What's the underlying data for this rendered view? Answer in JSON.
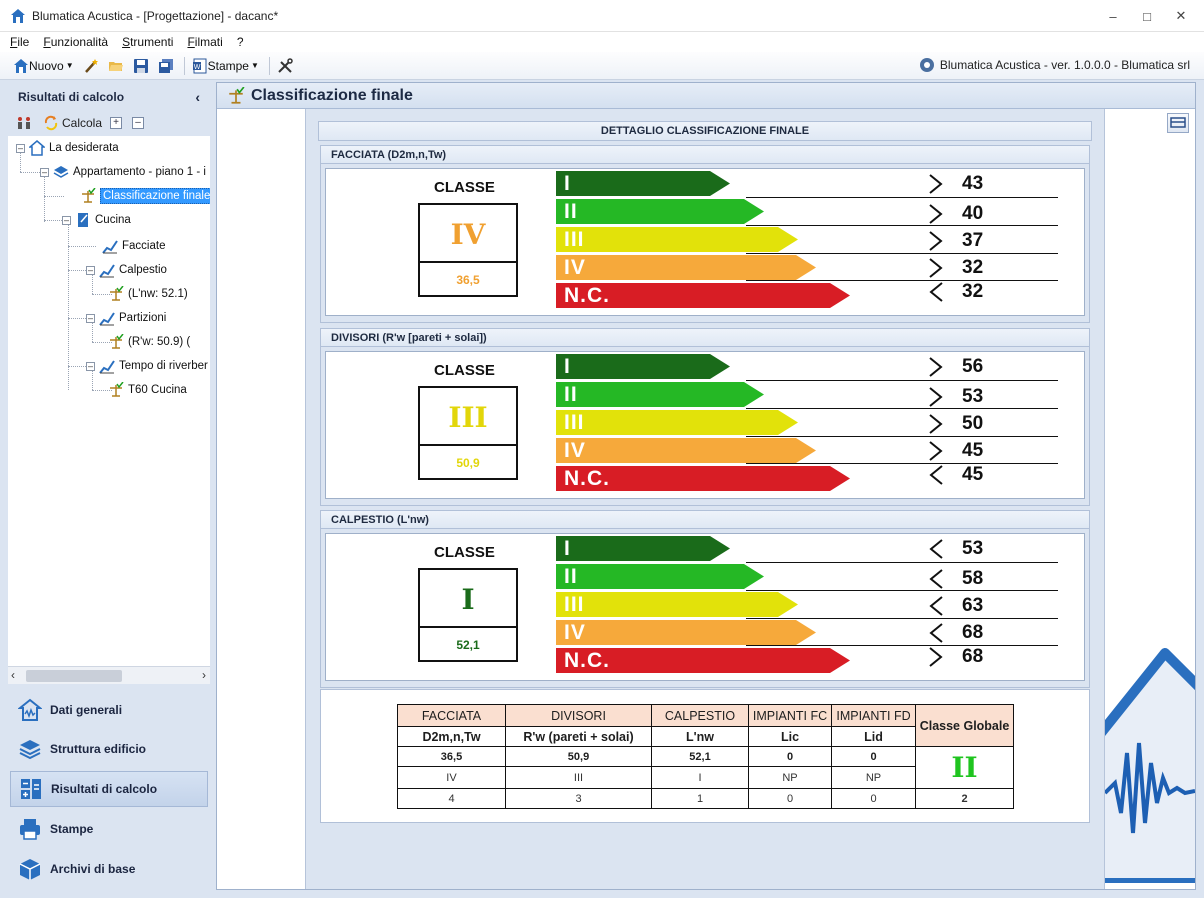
{
  "window": {
    "title": "Blumatica Acustica - [Progettazione]  - dacanc*"
  },
  "menu": [
    {
      "label": "File",
      "u": "F",
      "rest": "ile"
    },
    {
      "label": "Funzionalità",
      "u": "F",
      "rest": "unzionalità"
    },
    {
      "label": "Strumenti",
      "u": "S",
      "rest": "trumenti"
    },
    {
      "label": "Filmati",
      "u": "F",
      "rest": "ilmati"
    },
    {
      "label": "?",
      "u": "",
      "rest": "?"
    }
  ],
  "toolbar": {
    "nuovo": "Nuovo",
    "stampe": "Stampe",
    "version": "Blumatica Acustica - ver. 1.0.0.0 - Blumatica srl"
  },
  "left_panel": {
    "title": "Risultati di calcolo",
    "calcola": "Calcola",
    "tree": {
      "root": "La desiderata",
      "appartamento": "Appartamento - piano 1 - i",
      "classificazione": "Classificazione finale",
      "cucina": "Cucina",
      "facciate": "Facciate",
      "calpestio": "Calpestio",
      "calpestio_child": "(L'nw: 52.1)",
      "partizioni": "Partizioni",
      "partizioni_child": "(R'w: 50.9) (",
      "tempo": "Tempo di riverber",
      "t60": "T60 Cucina"
    }
  },
  "nav": [
    {
      "label": "Dati generali",
      "icon": "house-wave-icon"
    },
    {
      "label": "Struttura edificio",
      "icon": "layers-icon"
    },
    {
      "label": "Risultati di calcolo",
      "icon": "calculator-icon"
    },
    {
      "label": "Stampe",
      "icon": "printer-icon"
    },
    {
      "label": "Archivi di base",
      "icon": "archive-box-icon"
    }
  ],
  "main": {
    "title": "Classificazione finale",
    "detail_title": "DETTAGLIO CLASSIFICAZIONE FINALE",
    "classe_label": "CLASSE",
    "bars": [
      {
        "label": "I",
        "color": "#1a6b1a"
      },
      {
        "label": "II",
        "color": "#25b825"
      },
      {
        "label": "III",
        "color": "#e2e20a"
      },
      {
        "label": "IV",
        "color": "#f6a93b"
      },
      {
        "label": "N.C.",
        "color": "#d81d25"
      }
    ],
    "groups": [
      {
        "title": "FACCIATA (D2m,n,Tw)",
        "class": "IV",
        "value": "36,5",
        "color": "#f0a030",
        "thresholds": [
          "43",
          "40",
          "37",
          "32",
          "32"
        ],
        "dirs": [
          ">",
          ">",
          ">",
          ">",
          "<"
        ]
      },
      {
        "title": "DIVISORI (R'w [pareti + solai])",
        "class": "III",
        "value": "50,9",
        "color": "#e2d60a",
        "thresholds": [
          "56",
          "53",
          "50",
          "45",
          "45"
        ],
        "dirs": [
          ">",
          ">",
          ">",
          ">",
          "<"
        ]
      },
      {
        "title": "CALPESTIO (L'nw)",
        "class": "I",
        "value": "52,1",
        "color": "#1a6b1a",
        "thresholds": [
          "53",
          "58",
          "63",
          "68",
          "68"
        ],
        "dirs": [
          "<",
          "<",
          "<",
          "<",
          ">"
        ]
      }
    ]
  },
  "summary": {
    "headers": [
      "FACCIATA",
      "DIVISORI",
      "CALPESTIO",
      "IMPIANTI FC",
      "IMPIANTI FD"
    ],
    "subheaders": [
      "D2m,n,Tw",
      "R'w (pareti + solai)",
      "L'nw",
      "Lic",
      "Lid"
    ],
    "values": [
      "36,5",
      "50,9",
      "52,1",
      "0",
      "0"
    ],
    "classes": [
      "IV",
      "III",
      "I",
      "NP",
      "NP"
    ],
    "numbers": [
      "4",
      "3",
      "1",
      "0",
      "0"
    ],
    "global_header": "Classe Globale",
    "global_class": "II",
    "global_number": "2"
  }
}
